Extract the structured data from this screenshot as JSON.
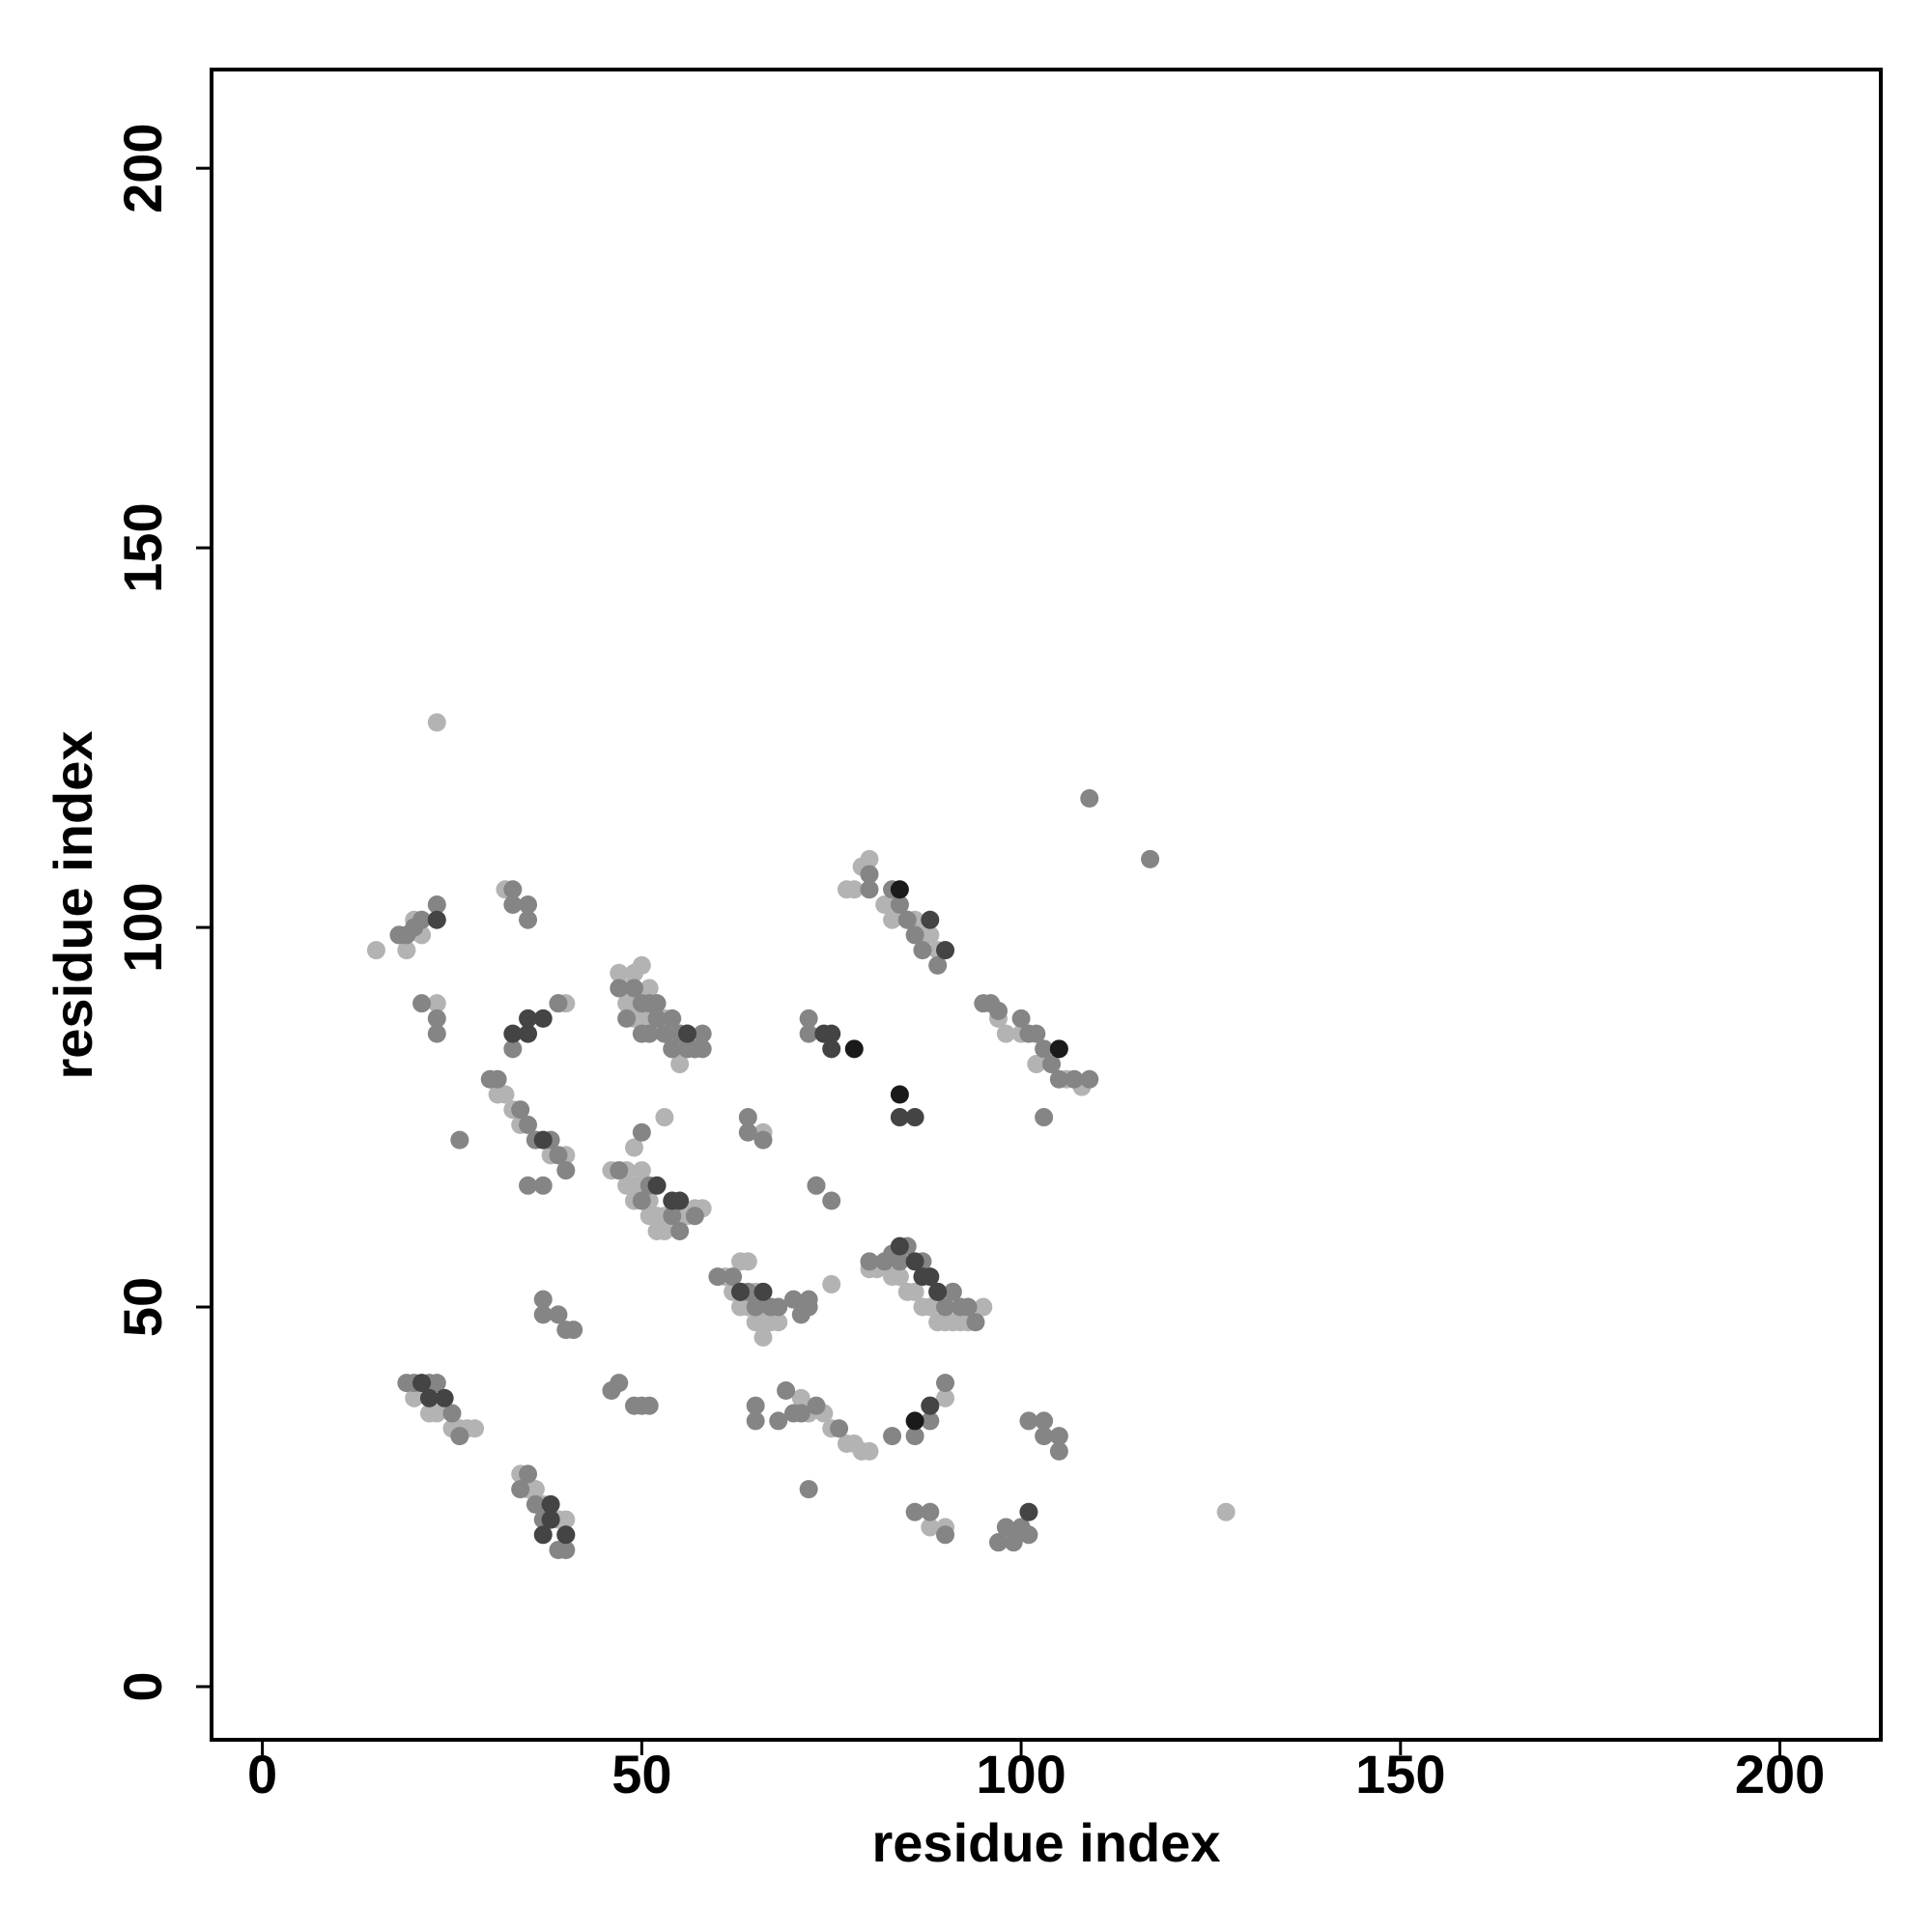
{
  "chart_data": {
    "type": "scatter",
    "x_label": "residue index",
    "y_label": "residue index",
    "xlim": [
      -6.7,
      213.3
    ],
    "ylim": [
      -7,
      213
    ],
    "xticks": [
      0,
      50,
      100,
      150,
      200
    ],
    "yticks": [
      0,
      50,
      100,
      150,
      200
    ],
    "grid": false,
    "series": [
      {
        "color": "#b3b3b3",
        "x": [
          15,
          18,
          19,
          20,
          21,
          23,
          32,
          31,
          32,
          33,
          34,
          36,
          38,
          39,
          40,
          39,
          40,
          20,
          22,
          23,
          25,
          26,
          27,
          28,
          34,
          35,
          36,
          37,
          39,
          40,
          47,
          48,
          49,
          50,
          48,
          49,
          50,
          51,
          49,
          50,
          51,
          52,
          53,
          54,
          55,
          53,
          54,
          55,
          56,
          55,
          49,
          53,
          46,
          48,
          49,
          50,
          50,
          51,
          52,
          53,
          49,
          51,
          52,
          53,
          55,
          56,
          57,
          58,
          48,
          50,
          61,
          62,
          63,
          64,
          63,
          64,
          65,
          66,
          67,
          65,
          66,
          68,
          66,
          75,
          77,
          78,
          79,
          80,
          82,
          83,
          84,
          85,
          86,
          87,
          88,
          89,
          90,
          80,
          81,
          83,
          84,
          85,
          86,
          87,
          88,
          89,
          90,
          91,
          90,
          92,
          93,
          95,
          97,
          98,
          100,
          102,
          104,
          106,
          108,
          71,
          72,
          74,
          75,
          77,
          78,
          79,
          80,
          90,
          88,
          90,
          97,
          99,
          100,
          127,
          23,
          73,
          66
        ],
        "y": [
          97,
          99,
          97,
          101,
          99,
          127,
          105,
          78,
          78,
          76,
          74,
          72,
          70,
          70,
          70,
          90,
          90,
          38,
          36,
          36,
          34,
          34,
          34,
          34,
          28,
          26,
          26,
          24,
          22,
          22,
          94,
          92,
          94,
          95,
          90,
          90,
          90,
          92,
          88,
          88,
          88,
          88,
          86,
          86,
          86,
          88,
          84,
          84,
          84,
          82,
          71,
          75,
          68,
          66,
          66,
          66,
          64,
          64,
          62,
          62,
          64,
          62,
          60,
          60,
          62,
          62,
          63,
          63,
          68,
          68,
          54,
          52,
          56,
          56,
          50,
          50,
          52,
          50,
          48,
          48,
          48,
          48,
          46,
          53,
          105,
          105,
          108,
          109,
          103,
          101,
          103,
          101,
          101,
          99,
          99,
          97,
          97,
          55,
          55,
          54,
          54,
          52,
          52,
          50,
          50,
          48,
          48,
          48,
          50,
          48,
          48,
          50,
          88,
          86,
          86,
          82,
          82,
          80,
          79,
          38,
          36,
          36,
          34,
          32,
          32,
          31,
          31,
          38,
          21,
          21,
          19,
          20,
          21,
          23,
          90,
          66,
          73
        ]
      },
      {
        "color": "#858585",
        "x": [
          18,
          19,
          21,
          23,
          20,
          21,
          23,
          23,
          33,
          33,
          35,
          35,
          39,
          30,
          31,
          33,
          34,
          35,
          36,
          38,
          40,
          35,
          37,
          39,
          26,
          37,
          37,
          39,
          40,
          41,
          19,
          20,
          22,
          23,
          25,
          26,
          34,
          35,
          36,
          37,
          38,
          40,
          39,
          40,
          47,
          49,
          50,
          51,
          52,
          48,
          50,
          51,
          52,
          53,
          54,
          56,
          57,
          58,
          54,
          55,
          56,
          57,
          58,
          50,
          47,
          51,
          54,
          55,
          57,
          50,
          47,
          46,
          49,
          50,
          51,
          60,
          62,
          63,
          64,
          65,
          67,
          68,
          70,
          72,
          71,
          64,
          64,
          66,
          72,
          72,
          73,
          75,
          72,
          80,
          80,
          83,
          84,
          85,
          86,
          87,
          89,
          95,
          96,
          97,
          100,
          101,
          102,
          103,
          104,
          105,
          107,
          109,
          103,
          80,
          82,
          83,
          84,
          85,
          87,
          89,
          90,
          91,
          92,
          93,
          94,
          109,
          117,
          69,
          70,
          71,
          73,
          76,
          65,
          65,
          68,
          72,
          83,
          86,
          88,
          90,
          86,
          88,
          90,
          88,
          97,
          98,
          99,
          101,
          103,
          103,
          105,
          105,
          101,
          100
        ],
        "y": [
          99,
          99,
          101,
          103,
          100,
          90,
          88,
          86,
          105,
          103,
          103,
          101,
          90,
          80,
          80,
          84,
          76,
          74,
          72,
          72,
          68,
          66,
          66,
          70,
          72,
          51,
          49,
          49,
          47,
          47,
          40,
          40,
          40,
          40,
          36,
          33,
          26,
          28,
          24,
          22,
          22,
          20,
          18,
          18,
          92,
          92,
          90,
          90,
          90,
          88,
          86,
          86,
          88,
          86,
          88,
          86,
          84,
          86,
          84,
          86,
          84,
          84,
          84,
          73,
          68,
          66,
          62,
          60,
          62,
          64,
          40,
          39,
          37,
          37,
          37,
          54,
          54,
          52,
          52,
          50,
          50,
          50,
          51,
          51,
          49,
          75,
          73,
          72,
          88,
          86,
          66,
          64,
          50,
          105,
          107,
          105,
          103,
          101,
          99,
          97,
          95,
          90,
          90,
          89,
          88,
          86,
          86,
          84,
          82,
          80,
          80,
          80,
          75,
          56,
          56,
          57,
          56,
          58,
          56,
          52,
          50,
          52,
          50,
          50,
          48,
          117,
          109,
          39,
          36,
          36,
          37,
          34,
          37,
          35,
          35,
          26,
          33,
          33,
          37,
          40,
          23,
          23,
          20,
          35,
          19,
          21,
          19,
          35,
          35,
          33,
          33,
          31,
          20,
          21
        ]
      },
      {
        "color": "#444444",
        "x": [
          23,
          33,
          35,
          35,
          37,
          37,
          24,
          38,
          74,
          75,
          75,
          84,
          86,
          88,
          101,
          21,
          52,
          54,
          56,
          86,
          88,
          88,
          90,
          66,
          37,
          55,
          84,
          87,
          89,
          40,
          38,
          22,
          63
        ],
        "y": [
          101,
          86,
          86,
          88,
          88,
          72,
          38,
          24,
          86,
          86,
          84,
          75,
          75,
          37,
          23,
          40,
          66,
          64,
          86,
          56,
          54,
          101,
          97,
          52,
          20,
          64,
          58,
          54,
          52,
          20,
          22,
          38,
          52
        ]
      },
      {
        "color": "#1a1a1a",
        "x": [
          84,
          78,
          84,
          105,
          86
        ],
        "y": [
          105,
          84,
          78,
          84,
          35
        ]
      }
    ]
  }
}
